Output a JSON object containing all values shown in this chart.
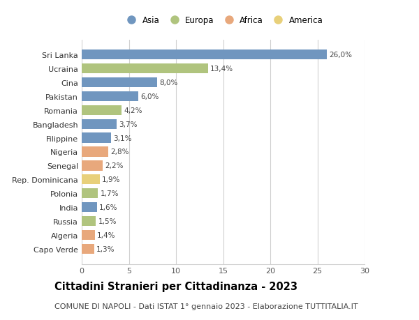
{
  "categories": [
    "Sri Lanka",
    "Ucraina",
    "Cina",
    "Pakistan",
    "Romania",
    "Bangladesh",
    "Filippine",
    "Nigeria",
    "Senegal",
    "Rep. Dominicana",
    "Polonia",
    "India",
    "Russia",
    "Algeria",
    "Capo Verde"
  ],
  "values": [
    26.0,
    13.4,
    8.0,
    6.0,
    4.2,
    3.7,
    3.1,
    2.8,
    2.2,
    1.9,
    1.7,
    1.6,
    1.5,
    1.4,
    1.3
  ],
  "labels": [
    "26,0%",
    "13,4%",
    "8,0%",
    "6,0%",
    "4,2%",
    "3,7%",
    "3,1%",
    "2,8%",
    "2,2%",
    "1,9%",
    "1,7%",
    "1,6%",
    "1,5%",
    "1,4%",
    "1,3%"
  ],
  "regions": [
    "Asia",
    "Europa",
    "Asia",
    "Asia",
    "Europa",
    "Asia",
    "Asia",
    "Africa",
    "Africa",
    "America",
    "Europa",
    "Asia",
    "Europa",
    "Africa",
    "Africa"
  ],
  "region_colors": {
    "Asia": "#7096bf",
    "Europa": "#b0c47e",
    "Africa": "#e8a87c",
    "America": "#e8d07a"
  },
  "legend_order": [
    "Asia",
    "Europa",
    "Africa",
    "America"
  ],
  "title": "Cittadini Stranieri per Cittadinanza - 2023",
  "subtitle": "COMUNE DI NAPOLI - Dati ISTAT 1° gennaio 2023 - Elaborazione TUTTITALIA.IT",
  "xlim": [
    0,
    30
  ],
  "xticks": [
    0,
    5,
    10,
    15,
    20,
    25,
    30
  ],
  "background_color": "#ffffff",
  "grid_color": "#d0d0d0",
  "bar_height": 0.72,
  "title_fontsize": 10.5,
  "subtitle_fontsize": 8,
  "label_fontsize": 7.5,
  "tick_fontsize": 8,
  "legend_fontsize": 8.5
}
